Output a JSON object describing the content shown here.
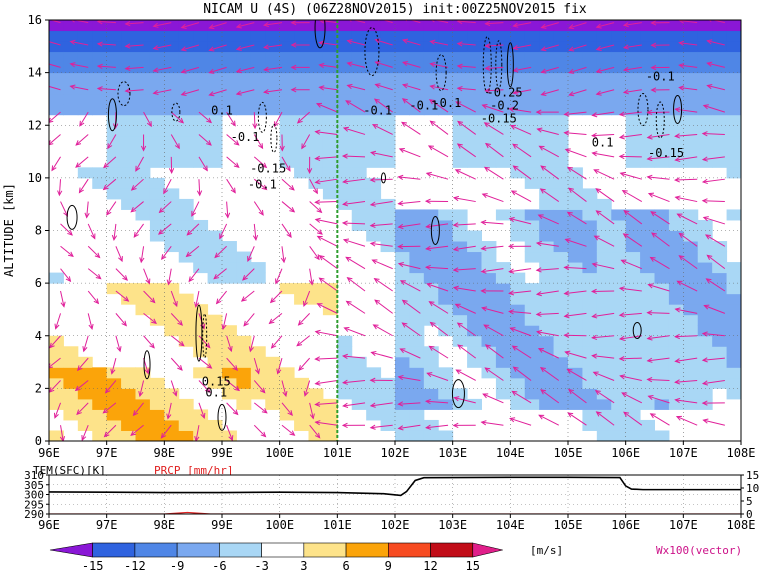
{
  "title": "NICAM U (4S) (06Z28NOV2015) init:00Z25NOV2015 fix",
  "chart_data": [
    {
      "type": "heatmap",
      "name": "main",
      "x_ticks": [
        "96E",
        "97E",
        "98E",
        "99E",
        "100E",
        "101E",
        "102E",
        "103E",
        "104E",
        "105E",
        "106E",
        "107E",
        "108E"
      ],
      "x_range": [
        96,
        108
      ],
      "y_ticks": [
        0,
        2,
        4,
        6,
        8,
        10,
        12,
        14,
        16
      ],
      "y_range": [
        0,
        16
      ],
      "ylabel": "ALTITUDE [km]",
      "marker_line_x": 101.0,
      "contour_labels": [
        {
          "text": "0.1",
          "x": 99.0,
          "y": 12.4
        },
        {
          "text": "-0.1",
          "x": 99.4,
          "y": 11.4
        },
        {
          "text": "-0.15",
          "x": 99.8,
          "y": 10.2
        },
        {
          "text": "-0.1",
          "x": 99.7,
          "y": 9.6
        },
        {
          "text": "-0.1",
          "x": 101.7,
          "y": 12.4
        },
        {
          "text": "-0.1",
          "x": 102.5,
          "y": 12.6
        },
        {
          "text": "-0.1",
          "x": 102.9,
          "y": 12.7
        },
        {
          "text": "-0.25",
          "x": 103.9,
          "y": 13.1
        },
        {
          "text": "-0.2",
          "x": 103.9,
          "y": 12.6
        },
        {
          "text": "-0.15",
          "x": 103.8,
          "y": 12.1
        },
        {
          "text": "0.1",
          "x": 105.6,
          "y": 11.2
        },
        {
          "text": "-0.1",
          "x": 106.6,
          "y": 13.7
        },
        {
          "text": "-0.15",
          "x": 106.7,
          "y": 10.8
        },
        {
          "text": "0.15",
          "x": 98.9,
          "y": 2.1
        },
        {
          "text": "0.1",
          "x": 98.9,
          "y": 1.7
        }
      ]
    },
    {
      "type": "line",
      "name": "surface",
      "x_ticks": [
        "96E",
        "97E",
        "98E",
        "99E",
        "100E",
        "101E",
        "102E",
        "103E",
        "104E",
        "105E",
        "106E",
        "107E",
        "108E"
      ],
      "left_label": "TEM(SFC)[K]",
      "right_label": "PRCP [mm/hr]",
      "left_ticks": [
        290,
        295,
        300,
        305,
        310
      ],
      "right_ticks": [
        0,
        5,
        10,
        15
      ],
      "series": [
        {
          "name": "TEM(SFC)[K]",
          "x": [
            96.0,
            97.0,
            98.0,
            99.0,
            100.0,
            101.0,
            101.8,
            102.1,
            102.2,
            102.35,
            102.5,
            103.0,
            104.0,
            105.0,
            105.9,
            106.0,
            106.1,
            106.3,
            107.0,
            108.0
          ],
          "y": [
            301.3,
            301.2,
            301.0,
            301.0,
            301.2,
            301.0,
            300.4,
            299.5,
            301.5,
            307.2,
            308.6,
            308.7,
            308.8,
            308.8,
            308.7,
            304.4,
            302.8,
            302.5,
            302.5,
            302.5
          ]
        },
        {
          "name": "PRCP [mm/hr]",
          "x": [
            96.0,
            98.0,
            98.2,
            98.4,
            98.6,
            98.8,
            100.0,
            108.0
          ],
          "y": [
            0.0,
            0.0,
            0.3,
            0.6,
            0.3,
            0.0,
            0.0,
            0.0
          ]
        }
      ]
    }
  ],
  "colorbar": {
    "ticks": [
      "-15",
      "-12",
      "-9",
      "-6",
      "-3",
      "3",
      "6",
      "9",
      "12",
      "15"
    ],
    "unit": "[m/s]",
    "colors": [
      "#8a17d6",
      "#2f63df",
      "#4f86e6",
      "#7aa8ef",
      "#a9d7f5",
      "#ffffff",
      "#fde38a",
      "#fba40a",
      "#f74b21",
      "#c10d18",
      "#e01f8a"
    ]
  },
  "vector_note": "Wx100(vector)",
  "colors": {
    "vector": "#e0209a",
    "marker_line": "#2d9c2d",
    "prcp": "#e02020"
  }
}
